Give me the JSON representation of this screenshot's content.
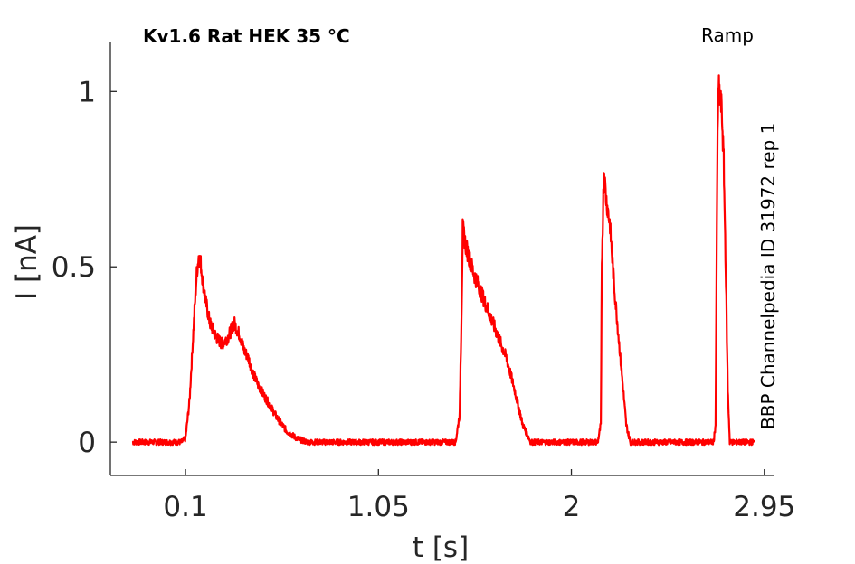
{
  "chart_data": {
    "type": "line",
    "title": "Kv1.6  Rat  HEK  35 °C",
    "protocol_label": "Ramp",
    "side_label": "BBP Channelpedia ID 31972 rep 1",
    "xlabel": "t [s]",
    "ylabel": "I [nA]",
    "xlim": [
      -0.27,
      3.0
    ],
    "ylim": [
      -0.095,
      1.14
    ],
    "xticks": [
      0.1,
      1.05,
      2,
      2.95
    ],
    "xtick_labels": [
      "0.1",
      "1.05",
      "2",
      "2.95"
    ],
    "yticks": [
      0,
      0.5,
      1
    ],
    "ytick_labels": [
      "0",
      "0.5",
      "1"
    ],
    "grid": false,
    "series": [
      {
        "color": "#ff0000",
        "x": [
          -0.16,
          0.0,
          0.05,
          0.08,
          0.1,
          0.12,
          0.14,
          0.155,
          0.165,
          0.175,
          0.185,
          0.2,
          0.22,
          0.25,
          0.28,
          0.31,
          0.34,
          0.37,
          0.39,
          0.41,
          0.43,
          0.46,
          0.5,
          0.55,
          0.6,
          0.65,
          0.7,
          0.75,
          0.78,
          0.85,
          1.0,
          1.2,
          1.4,
          1.43,
          1.45,
          1.46,
          1.465,
          1.48,
          1.52,
          1.56,
          1.6,
          1.64,
          1.68,
          1.72,
          1.76,
          1.8,
          1.85,
          2.0,
          2.1,
          2.13,
          2.145,
          2.15,
          2.16,
          2.17,
          2.19,
          2.21,
          2.24,
          2.27,
          2.29,
          2.31,
          2.35,
          2.5,
          2.65,
          2.68,
          2.7,
          2.71,
          2.715,
          2.72,
          2.725,
          2.74,
          2.75,
          2.76,
          2.77,
          2.78,
          2.8,
          2.9
        ],
        "y": [
          0.0,
          0.0,
          0.0,
          0.0,
          0.01,
          0.12,
          0.33,
          0.48,
          0.53,
          0.51,
          0.46,
          0.4,
          0.34,
          0.3,
          0.28,
          0.3,
          0.34,
          0.3,
          0.26,
          0.24,
          0.2,
          0.16,
          0.12,
          0.07,
          0.03,
          0.01,
          0.0,
          0.0,
          0.0,
          0.0,
          0.0,
          0.0,
          0.0,
          0.0,
          0.08,
          0.4,
          0.61,
          0.56,
          0.48,
          0.42,
          0.36,
          0.3,
          0.24,
          0.15,
          0.05,
          0.0,
          0.0,
          0.0,
          0.0,
          0.0,
          0.05,
          0.5,
          0.78,
          0.7,
          0.62,
          0.45,
          0.25,
          0.05,
          0.0,
          0.0,
          0.0,
          0.0,
          0.0,
          0.0,
          0.0,
          0.05,
          0.5,
          0.9,
          1.01,
          0.95,
          0.8,
          0.5,
          0.15,
          0.0,
          0.0,
          0.0
        ]
      }
    ]
  }
}
